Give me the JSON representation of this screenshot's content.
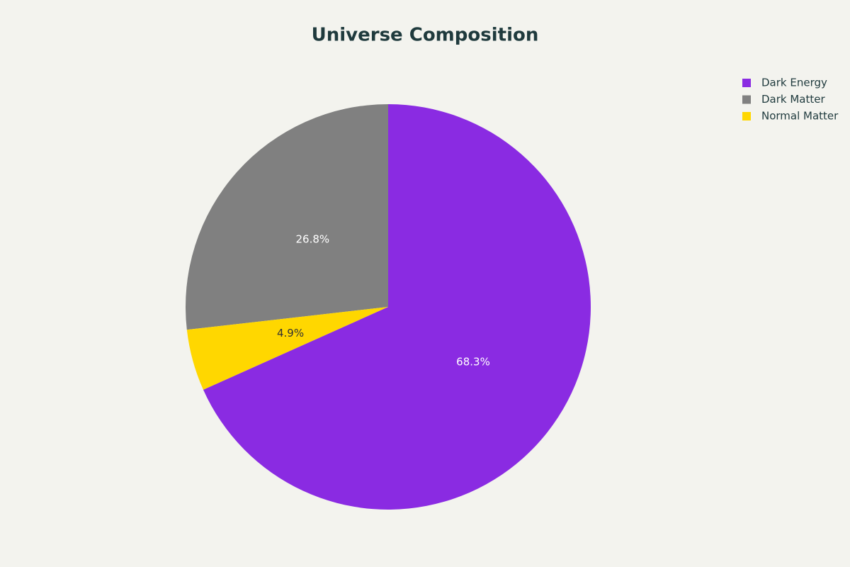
{
  "chart_data": {
    "type": "pie",
    "title": "Universe Composition",
    "categories": [
      "Dark Energy",
      "Dark Matter",
      "Normal Matter"
    ],
    "values": [
      68.3,
      26.8,
      4.9
    ],
    "value_labels": [
      "68.3%",
      "26.8%",
      "4.9%"
    ],
    "colors": [
      "#8a2be2",
      "#808080",
      "#ffd700"
    ],
    "direction": "counterclockwise",
    "legend": "top-right"
  }
}
